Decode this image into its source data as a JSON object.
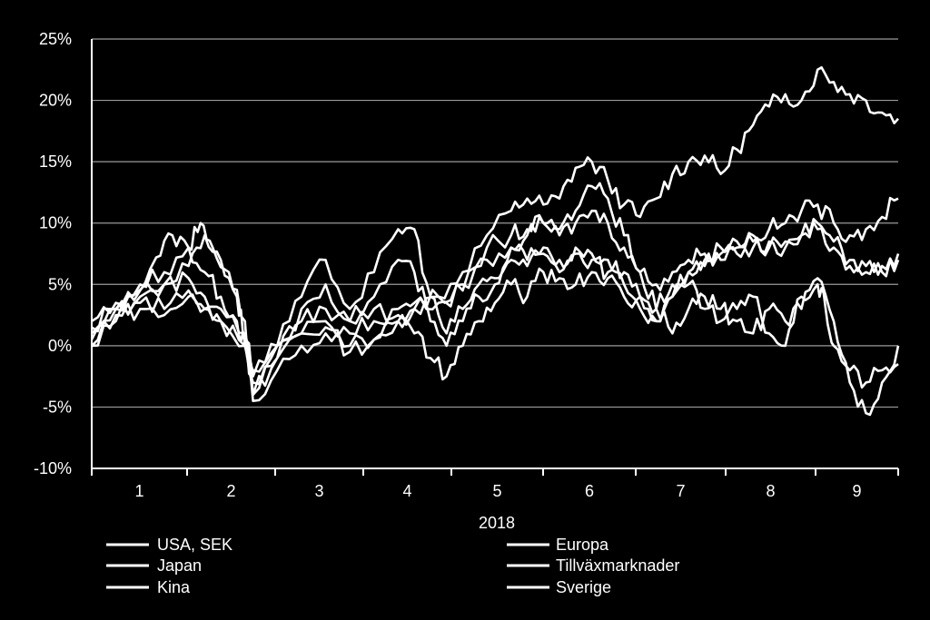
{
  "chart_data": {
    "type": "line",
    "title": "",
    "xlabel": "2018",
    "ylabel": "",
    "x_ticks": [
      "1",
      "2",
      "3",
      "4",
      "5",
      "6",
      "7",
      "8",
      "9"
    ],
    "y_ticks": [
      "25%",
      "20%",
      "15%",
      "10%",
      "5%",
      "0%",
      "-5%",
      "-10%"
    ],
    "ylim": [
      -10,
      25
    ],
    "x_range_months": [
      0,
      9
    ],
    "grid": true,
    "legend_position": "bottom",
    "line_color": "#ffffff",
    "background": "#000000",
    "series": [
      {
        "name": "USA, SEK",
        "points": [
          [
            0,
            0.5
          ],
          [
            0.3,
            3
          ],
          [
            0.5,
            4
          ],
          [
            0.8,
            7.2
          ],
          [
            1.0,
            9
          ],
          [
            1.2,
            8
          ],
          [
            1.4,
            6
          ],
          [
            1.6,
            4
          ],
          [
            1.8,
            2
          ],
          [
            1.9,
            0
          ],
          [
            2.0,
            -2.5
          ],
          [
            2.3,
            0
          ],
          [
            2.6,
            1
          ],
          [
            2.9,
            1.5
          ],
          [
            3.2,
            -0.5
          ],
          [
            3.5,
            0.5
          ],
          [
            3.8,
            2
          ],
          [
            4.0,
            3
          ],
          [
            4.3,
            4
          ],
          [
            4.6,
            6
          ],
          [
            4.9,
            9
          ],
          [
            5.2,
            11
          ],
          [
            5.4,
            12
          ],
          [
            5.6,
            11.5
          ],
          [
            5.8,
            12
          ],
          [
            6.0,
            14.5
          ],
          [
            6.2,
            15
          ],
          [
            6.4,
            13.5
          ],
          [
            6.6,
            11.5
          ],
          [
            6.8,
            10.5
          ],
          [
            7.0,
            12
          ],
          [
            7.2,
            14
          ],
          [
            7.4,
            15
          ],
          [
            7.6,
            15.5
          ],
          [
            7.8,
            14
          ],
          [
            8.0,
            16
          ],
          [
            8.2,
            18
          ],
          [
            8.4,
            19.5
          ],
          [
            8.6,
            20.5
          ],
          [
            8.8,
            20
          ],
          [
            9.0,
            22.5
          ],
          [
            9.2,
            21.5
          ],
          [
            9.4,
            20.5
          ],
          [
            9.6,
            20
          ],
          [
            9.8,
            19
          ],
          [
            10.0,
            18.5
          ]
        ]
      },
      {
        "name": "Europa",
        "points": [
          [
            0,
            1
          ],
          [
            0.3,
            2.5
          ],
          [
            0.6,
            3
          ],
          [
            0.9,
            2.5
          ],
          [
            1.2,
            4
          ],
          [
            1.4,
            3
          ],
          [
            1.6,
            2
          ],
          [
            1.9,
            0
          ],
          [
            2.0,
            -3
          ],
          [
            2.3,
            -1
          ],
          [
            2.6,
            1
          ],
          [
            2.9,
            2
          ],
          [
            3.2,
            1
          ],
          [
            3.5,
            2
          ],
          [
            3.8,
            3
          ],
          [
            4.0,
            3.5
          ],
          [
            4.3,
            4
          ],
          [
            4.6,
            5
          ],
          [
            4.9,
            7
          ],
          [
            5.2,
            8
          ],
          [
            5.4,
            7
          ],
          [
            5.6,
            8
          ],
          [
            5.8,
            7
          ],
          [
            6.0,
            7.5
          ],
          [
            6.2,
            7
          ],
          [
            6.4,
            6
          ],
          [
            6.6,
            5
          ],
          [
            6.8,
            4
          ],
          [
            7.0,
            3
          ],
          [
            7.2,
            5
          ],
          [
            7.4,
            6
          ],
          [
            7.6,
            6.5
          ],
          [
            7.8,
            7
          ],
          [
            8.0,
            7.5
          ],
          [
            8.2,
            8
          ],
          [
            8.4,
            8.5
          ],
          [
            8.6,
            8
          ],
          [
            8.8,
            9
          ],
          [
            9.0,
            10
          ],
          [
            9.2,
            8.5
          ],
          [
            9.4,
            7
          ],
          [
            9.6,
            6.5
          ],
          [
            9.8,
            6
          ],
          [
            10.0,
            7
          ]
        ]
      },
      {
        "name": "Japan",
        "points": [
          [
            0,
            2
          ],
          [
            0.3,
            3.5
          ],
          [
            0.6,
            4.5
          ],
          [
            0.9,
            5
          ],
          [
            1.2,
            5.5
          ],
          [
            1.4,
            4
          ],
          [
            1.6,
            3
          ],
          [
            1.9,
            1
          ],
          [
            2.0,
            -2
          ],
          [
            2.3,
            0
          ],
          [
            2.6,
            2
          ],
          [
            2.9,
            3
          ],
          [
            3.2,
            2
          ],
          [
            3.5,
            3
          ],
          [
            3.8,
            2.5
          ],
          [
            4.0,
            3
          ],
          [
            4.3,
            3.5
          ],
          [
            4.6,
            4.5
          ],
          [
            4.9,
            8
          ],
          [
            5.2,
            9
          ],
          [
            5.4,
            9.5
          ],
          [
            5.6,
            10
          ],
          [
            5.8,
            9
          ],
          [
            6.0,
            10
          ],
          [
            6.2,
            11
          ],
          [
            6.4,
            10
          ],
          [
            6.6,
            8
          ],
          [
            6.8,
            6
          ],
          [
            7.0,
            5
          ],
          [
            7.2,
            6
          ],
          [
            7.4,
            7
          ],
          [
            7.6,
            7.5
          ],
          [
            7.8,
            8
          ],
          [
            8.0,
            8.5
          ],
          [
            8.2,
            9
          ],
          [
            8.4,
            9.5
          ],
          [
            8.6,
            10
          ],
          [
            8.8,
            11
          ],
          [
            9.0,
            11.5
          ],
          [
            9.2,
            10
          ],
          [
            9.4,
            9
          ],
          [
            9.6,
            9.5
          ],
          [
            9.8,
            10.5
          ],
          [
            10.0,
            12
          ]
        ]
      },
      {
        "name": "Tillväxmarknader",
        "points": [
          [
            0,
            0
          ],
          [
            0.3,
            3
          ],
          [
            0.6,
            5
          ],
          [
            0.9,
            6
          ],
          [
            1.2,
            8
          ],
          [
            1.35,
            10
          ],
          [
            1.5,
            8
          ],
          [
            1.7,
            6
          ],
          [
            1.9,
            2
          ],
          [
            2.0,
            -4
          ],
          [
            2.3,
            0
          ],
          [
            2.6,
            4
          ],
          [
            2.9,
            7
          ],
          [
            3.2,
            3
          ],
          [
            3.5,
            6
          ],
          [
            3.8,
            9.5
          ],
          [
            4.0,
            9.5
          ],
          [
            4.2,
            4
          ],
          [
            4.4,
            1
          ],
          [
            4.6,
            3
          ],
          [
            4.8,
            5
          ],
          [
            5.0,
            5.5
          ],
          [
            5.2,
            7
          ],
          [
            5.4,
            6.5
          ],
          [
            5.6,
            7.5
          ],
          [
            5.8,
            6
          ],
          [
            6.0,
            8
          ],
          [
            6.2,
            7.5
          ],
          [
            6.4,
            7
          ],
          [
            6.6,
            6
          ],
          [
            6.8,
            4
          ],
          [
            7.0,
            2
          ],
          [
            7.2,
            4
          ],
          [
            7.4,
            5
          ],
          [
            7.6,
            3
          ],
          [
            7.8,
            2
          ],
          [
            8.0,
            3
          ],
          [
            8.2,
            4
          ],
          [
            8.4,
            1
          ],
          [
            8.6,
            0
          ],
          [
            8.8,
            4
          ],
          [
            9.0,
            5
          ],
          [
            9.1,
            3
          ],
          [
            9.2,
            0
          ],
          [
            9.4,
            -2
          ],
          [
            9.6,
            -3
          ],
          [
            9.8,
            -2
          ],
          [
            10.0,
            -1.5
          ]
        ]
      },
      {
        "name": "Kina",
        "points": [
          [
            0,
            0
          ],
          [
            0.3,
            2
          ],
          [
            0.6,
            4
          ],
          [
            0.9,
            5
          ],
          [
            1.2,
            6.5
          ],
          [
            1.4,
            9
          ],
          [
            1.6,
            7
          ],
          [
            1.8,
            4
          ],
          [
            1.9,
            1
          ],
          [
            2.0,
            -4
          ],
          [
            2.3,
            -1
          ],
          [
            2.6,
            3
          ],
          [
            2.9,
            5
          ],
          [
            3.2,
            2
          ],
          [
            3.5,
            4
          ],
          [
            3.8,
            7
          ],
          [
            4.0,
            6
          ],
          [
            4.2,
            2
          ],
          [
            4.4,
            0
          ],
          [
            4.6,
            2
          ],
          [
            4.8,
            4
          ],
          [
            5.0,
            5
          ],
          [
            5.2,
            8
          ],
          [
            5.4,
            9
          ],
          [
            5.6,
            10
          ],
          [
            5.8,
            9.5
          ],
          [
            6.0,
            11
          ],
          [
            6.2,
            13
          ],
          [
            6.4,
            12
          ],
          [
            6.6,
            9
          ],
          [
            6.8,
            6
          ],
          [
            7.0,
            3
          ],
          [
            7.2,
            1
          ],
          [
            7.4,
            3
          ],
          [
            7.6,
            4
          ],
          [
            7.8,
            3
          ],
          [
            8.0,
            2
          ],
          [
            8.2,
            1
          ],
          [
            8.4,
            3
          ],
          [
            8.6,
            2
          ],
          [
            8.8,
            3
          ],
          [
            9.0,
            5.5
          ],
          [
            9.2,
            2
          ],
          [
            9.4,
            -3
          ],
          [
            9.6,
            -5.5
          ],
          [
            9.8,
            -3
          ],
          [
            10.0,
            0
          ]
        ]
      },
      {
        "name": "Sverige",
        "points": [
          [
            0,
            1.5
          ],
          [
            0.3,
            3
          ],
          [
            0.6,
            3.5
          ],
          [
            0.9,
            3
          ],
          [
            1.2,
            4.5
          ],
          [
            1.4,
            3
          ],
          [
            1.6,
            2
          ],
          [
            1.9,
            0
          ],
          [
            2.0,
            -4.5
          ],
          [
            2.3,
            -2
          ],
          [
            2.6,
            0
          ],
          [
            2.9,
            1
          ],
          [
            3.2,
            0
          ],
          [
            3.5,
            0.5
          ],
          [
            3.8,
            2
          ],
          [
            4.0,
            1
          ],
          [
            4.2,
            -1
          ],
          [
            4.4,
            -2.5
          ],
          [
            4.6,
            0
          ],
          [
            4.8,
            2
          ],
          [
            5.0,
            3.5
          ],
          [
            5.2,
            5
          ],
          [
            5.4,
            4
          ],
          [
            5.6,
            6
          ],
          [
            5.8,
            5.5
          ],
          [
            6.0,
            5
          ],
          [
            6.2,
            6
          ],
          [
            6.4,
            5.5
          ],
          [
            6.6,
            4
          ],
          [
            6.8,
            3
          ],
          [
            7.0,
            2
          ],
          [
            7.2,
            4
          ],
          [
            7.4,
            6
          ],
          [
            7.6,
            7
          ],
          [
            7.8,
            7.5
          ],
          [
            8.0,
            8
          ],
          [
            8.2,
            8.5
          ],
          [
            8.4,
            8
          ],
          [
            8.6,
            8.5
          ],
          [
            8.8,
            9
          ],
          [
            9.0,
            9.5
          ],
          [
            9.2,
            8
          ],
          [
            9.4,
            6.5
          ],
          [
            9.6,
            6
          ],
          [
            9.8,
            6.5
          ],
          [
            10.0,
            7.5
          ]
        ]
      }
    ]
  }
}
